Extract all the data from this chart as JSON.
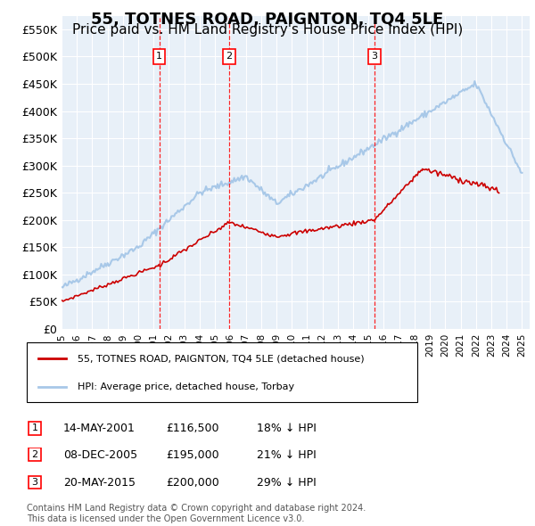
{
  "title": "55, TOTNES ROAD, PAIGNTON, TQ4 5LE",
  "subtitle": "Price paid vs. HM Land Registry's House Price Index (HPI)",
  "ylim": [
    0,
    575000
  ],
  "yticks": [
    0,
    50000,
    100000,
    150000,
    200000,
    250000,
    300000,
    350000,
    400000,
    450000,
    500000,
    550000
  ],
  "ytick_labels": [
    "£0",
    "£50K",
    "£100K",
    "£150K",
    "£200K",
    "£250K",
    "£300K",
    "£350K",
    "£400K",
    "£450K",
    "£500K",
    "£550K"
  ],
  "hpi_color": "#a8c8e8",
  "price_color": "#cc0000",
  "background_color": "#ffffff",
  "plot_bg_color": "#e8f0f8",
  "grid_color": "#ffffff",
  "title_fontsize": 13,
  "subtitle_fontsize": 11,
  "sales": [
    {
      "date_num": 2001.37,
      "price": 116500,
      "label": "1"
    },
    {
      "date_num": 2005.93,
      "price": 195000,
      "label": "2"
    },
    {
      "date_num": 2015.38,
      "price": 200000,
      "label": "3"
    }
  ],
  "sale_dates": [
    "14-MAY-2001",
    "08-DEC-2005",
    "20-MAY-2015"
  ],
  "sale_prices": [
    "£116,500",
    "£195,000",
    "£200,000"
  ],
  "sale_hpi_pcts": [
    "18% ↓ HPI",
    "21% ↓ HPI",
    "29% ↓ HPI"
  ],
  "legend_property": "55, TOTNES ROAD, PAIGNTON, TQ4 5LE (detached house)",
  "legend_hpi": "HPI: Average price, detached house, Torbay",
  "footnote": "Contains HM Land Registry data © Crown copyright and database right 2024.\nThis data is licensed under the Open Government Licence v3.0.",
  "xmin": 1995.0,
  "xmax": 2025.5
}
